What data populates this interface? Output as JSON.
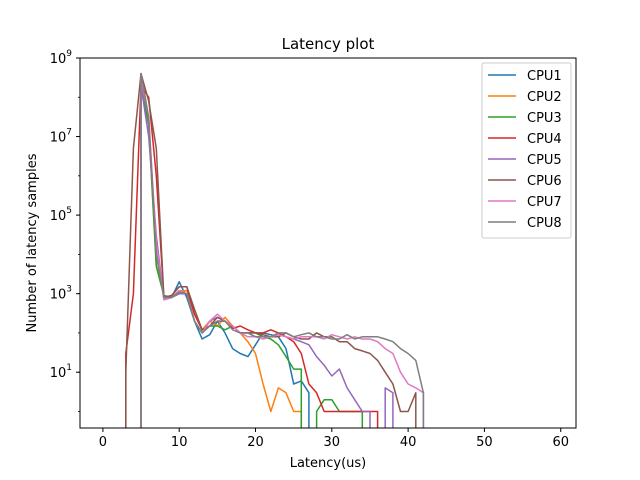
{
  "chart_data": {
    "type": "line",
    "title": "Latency plot",
    "xlabel": "Latency(us)",
    "ylabel": "Number of latency samples",
    "xlim": [
      -3,
      62
    ],
    "ylim_log10": [
      -0.42,
      9.0
    ],
    "y_scale": "log",
    "x_ticks": [
      0,
      10,
      20,
      30,
      40,
      50,
      60
    ],
    "x_tick_labels": [
      "0",
      "10",
      "20",
      "30",
      "40",
      "50",
      "60"
    ],
    "y_ticks_log10": [
      1,
      3,
      5,
      7,
      9
    ],
    "y_tick_labels": [
      {
        "base": "10",
        "exp": "1"
      },
      {
        "base": "10",
        "exp": "3"
      },
      {
        "base": "10",
        "exp": "5"
      },
      {
        "base": "10",
        "exp": "7"
      },
      {
        "base": "10",
        "exp": "9"
      }
    ],
    "legend_position": "top-right",
    "grid": false,
    "series": [
      {
        "name": "CPU1",
        "color": "#1f77b4",
        "points": [
          [
            5,
            0
          ],
          [
            5,
            400000000.0
          ],
          [
            6,
            30000000.0
          ],
          [
            7,
            10000.0
          ],
          [
            8,
            800
          ],
          [
            9,
            800
          ],
          [
            10,
            2000
          ],
          [
            11,
            800
          ],
          [
            12,
            200
          ],
          [
            13,
            70
          ],
          [
            14,
            90
          ],
          [
            15,
            200
          ],
          [
            16,
            100
          ],
          [
            17,
            40
          ],
          [
            18,
            30
          ],
          [
            19,
            25
          ],
          [
            20,
            50
          ],
          [
            21,
            100
          ],
          [
            22,
            90
          ],
          [
            23,
            80
          ],
          [
            24,
            40
          ],
          [
            25,
            5
          ],
          [
            26,
            6
          ],
          [
            27,
            3
          ],
          [
            27,
            0
          ]
        ]
      },
      {
        "name": "CPU2",
        "color": "#ff7f0e",
        "points": [
          [
            5,
            0
          ],
          [
            5,
            300000000.0
          ],
          [
            6,
            20000000.0
          ],
          [
            7,
            5000.0
          ],
          [
            8,
            900
          ],
          [
            9,
            800
          ],
          [
            10,
            1200
          ],
          [
            11,
            1200
          ],
          [
            12,
            300
          ],
          [
            13,
            120
          ],
          [
            14,
            200
          ],
          [
            15,
            150
          ],
          [
            16,
            250
          ],
          [
            17,
            150
          ],
          [
            18,
            100
          ],
          [
            19,
            60
          ],
          [
            20,
            30
          ],
          [
            21,
            5
          ],
          [
            22,
            1
          ],
          [
            23,
            4
          ],
          [
            24,
            3
          ],
          [
            25,
            1
          ],
          [
            26,
            1
          ],
          [
            26,
            0
          ]
        ]
      },
      {
        "name": "CPU3",
        "color": "#2ca02c",
        "points": [
          [
            5,
            0
          ],
          [
            5,
            200000000.0
          ],
          [
            6,
            20000000.0
          ],
          [
            7,
            5000.0
          ],
          [
            8,
            900
          ],
          [
            9,
            800
          ],
          [
            10,
            1000
          ],
          [
            11,
            1000
          ],
          [
            12,
            200
          ],
          [
            13,
            100
          ],
          [
            14,
            150
          ],
          [
            15,
            150
          ],
          [
            16,
            120
          ],
          [
            17,
            150
          ],
          [
            18,
            100
          ],
          [
            19,
            100
          ],
          [
            20,
            100
          ],
          [
            21,
            80
          ],
          [
            22,
            70
          ],
          [
            23,
            50
          ],
          [
            24,
            25
          ],
          [
            25,
            12
          ],
          [
            26,
            12
          ],
          [
            26,
            0
          ],
          [
            28,
            0
          ],
          [
            28,
            1
          ],
          [
            29,
            2
          ],
          [
            30,
            2
          ],
          [
            31,
            1
          ],
          [
            32,
            1
          ],
          [
            33,
            1
          ],
          [
            34,
            1
          ],
          [
            34,
            0
          ]
        ]
      },
      {
        "name": "CPU4",
        "color": "#d62728",
        "points": [
          [
            3,
            0
          ],
          [
            3,
            30
          ],
          [
            4,
            1000
          ],
          [
            5,
            200000000.0
          ],
          [
            6,
            100000000.0
          ],
          [
            7,
            1000000.0
          ],
          [
            8,
            800
          ],
          [
            9,
            900
          ],
          [
            10,
            1500
          ],
          [
            11,
            1500
          ],
          [
            12,
            300
          ],
          [
            13,
            120
          ],
          [
            14,
            150
          ],
          [
            15,
            200
          ],
          [
            16,
            200
          ],
          [
            17,
            130
          ],
          [
            18,
            150
          ],
          [
            19,
            120
          ],
          [
            20,
            100
          ],
          [
            21,
            100
          ],
          [
            22,
            120
          ],
          [
            23,
            100
          ],
          [
            24,
            80
          ],
          [
            25,
            60
          ],
          [
            26,
            30
          ],
          [
            27,
            5
          ],
          [
            28,
            3
          ],
          [
            29,
            1
          ],
          [
            30,
            1
          ],
          [
            31,
            1
          ],
          [
            32,
            1
          ],
          [
            33,
            1
          ],
          [
            34,
            1
          ],
          [
            35,
            1
          ],
          [
            36,
            1
          ],
          [
            36,
            0
          ]
        ]
      },
      {
        "name": "CPU5",
        "color": "#9467bd",
        "points": [
          [
            5,
            0
          ],
          [
            5,
            200000000.0
          ],
          [
            6,
            10000000.0
          ],
          [
            7,
            30000.0
          ],
          [
            8,
            700
          ],
          [
            9,
            800
          ],
          [
            10,
            1000
          ],
          [
            11,
            1000
          ],
          [
            12,
            200
          ],
          [
            13,
            100
          ],
          [
            14,
            200
          ],
          [
            15,
            250
          ],
          [
            16,
            200
          ],
          [
            17,
            150
          ],
          [
            18,
            100
          ],
          [
            19,
            100
          ],
          [
            20,
            80
          ],
          [
            21,
            80
          ],
          [
            22,
            80
          ],
          [
            23,
            90
          ],
          [
            24,
            80
          ],
          [
            25,
            70
          ],
          [
            26,
            60
          ],
          [
            27,
            50
          ],
          [
            28,
            25
          ],
          [
            29,
            15
          ],
          [
            30,
            8
          ],
          [
            31,
            12
          ],
          [
            32,
            4
          ],
          [
            33,
            2
          ],
          [
            34,
            1
          ],
          [
            35,
            1
          ],
          [
            35,
            0
          ],
          [
            37,
            0
          ],
          [
            37,
            4
          ],
          [
            38,
            3
          ],
          [
            38,
            0
          ]
        ]
      },
      {
        "name": "CPU6",
        "color": "#8c564b",
        "points": [
          [
            3,
            0
          ],
          [
            3,
            10
          ],
          [
            4,
            5000000.0
          ],
          [
            5,
            400000000.0
          ],
          [
            6,
            80000000.0
          ],
          [
            7,
            5000000.0
          ],
          [
            8,
            800
          ],
          [
            9,
            900
          ],
          [
            10,
            1500
          ],
          [
            11,
            1500
          ],
          [
            12,
            400
          ],
          [
            13,
            120
          ],
          [
            14,
            150
          ],
          [
            15,
            250
          ],
          [
            16,
            200
          ],
          [
            17,
            150
          ],
          [
            18,
            100
          ],
          [
            19,
            100
          ],
          [
            20,
            100
          ],
          [
            21,
            90
          ],
          [
            22,
            80
          ],
          [
            23,
            80
          ],
          [
            24,
            100
          ],
          [
            25,
            80
          ],
          [
            26,
            70
          ],
          [
            27,
            70
          ],
          [
            28,
            100
          ],
          [
            29,
            80
          ],
          [
            30,
            80
          ],
          [
            31,
            60
          ],
          [
            32,
            60
          ],
          [
            33,
            40
          ],
          [
            34,
            35
          ],
          [
            35,
            30
          ],
          [
            36,
            20
          ],
          [
            37,
            10
          ],
          [
            38,
            5
          ],
          [
            39,
            1
          ],
          [
            40,
            1
          ],
          [
            41,
            3
          ],
          [
            41,
            0
          ]
        ]
      },
      {
        "name": "CPU7",
        "color": "#e377c2",
        "points": [
          [
            5,
            0
          ],
          [
            5,
            300000000.0
          ],
          [
            6,
            30000000.0
          ],
          [
            7,
            20000.0
          ],
          [
            8,
            700
          ],
          [
            9,
            800
          ],
          [
            10,
            1200
          ],
          [
            11,
            1000
          ],
          [
            12,
            200
          ],
          [
            13,
            100
          ],
          [
            14,
            200
          ],
          [
            15,
            300
          ],
          [
            16,
            200
          ],
          [
            17,
            150
          ],
          [
            18,
            100
          ],
          [
            19,
            80
          ],
          [
            20,
            80
          ],
          [
            21,
            70
          ],
          [
            22,
            80
          ],
          [
            23,
            90
          ],
          [
            24,
            80
          ],
          [
            25,
            70
          ],
          [
            26,
            80
          ],
          [
            27,
            80
          ],
          [
            28,
            80
          ],
          [
            29,
            70
          ],
          [
            30,
            90
          ],
          [
            31,
            80
          ],
          [
            32,
            70
          ],
          [
            33,
            80
          ],
          [
            34,
            70
          ],
          [
            35,
            70
          ],
          [
            36,
            60
          ],
          [
            37,
            40
          ],
          [
            38,
            30
          ],
          [
            39,
            10
          ],
          [
            40,
            5
          ],
          [
            41,
            4
          ],
          [
            42,
            3
          ],
          [
            42,
            0
          ]
        ]
      },
      {
        "name": "CPU8",
        "color": "#7f7f7f",
        "points": [
          [
            5,
            0
          ],
          [
            5,
            400000000.0
          ],
          [
            6,
            30000000.0
          ],
          [
            7,
            10000.0
          ],
          [
            8,
            800
          ],
          [
            9,
            800
          ],
          [
            10,
            1100
          ],
          [
            11,
            1000
          ],
          [
            12,
            200
          ],
          [
            13,
            100
          ],
          [
            14,
            150
          ],
          [
            15,
            200
          ],
          [
            16,
            200
          ],
          [
            17,
            120
          ],
          [
            18,
            100
          ],
          [
            19,
            100
          ],
          [
            20,
            80
          ],
          [
            21,
            80
          ],
          [
            22,
            80
          ],
          [
            23,
            100
          ],
          [
            24,
            100
          ],
          [
            25,
            80
          ],
          [
            26,
            90
          ],
          [
            27,
            100
          ],
          [
            28,
            80
          ],
          [
            29,
            80
          ],
          [
            30,
            70
          ],
          [
            31,
            70
          ],
          [
            32,
            90
          ],
          [
            33,
            70
          ],
          [
            34,
            80
          ],
          [
            35,
            80
          ],
          [
            36,
            80
          ],
          [
            37,
            70
          ],
          [
            38,
            60
          ],
          [
            39,
            40
          ],
          [
            40,
            30
          ],
          [
            41,
            20
          ],
          [
            42,
            3
          ],
          [
            42,
            0
          ]
        ]
      }
    ]
  }
}
